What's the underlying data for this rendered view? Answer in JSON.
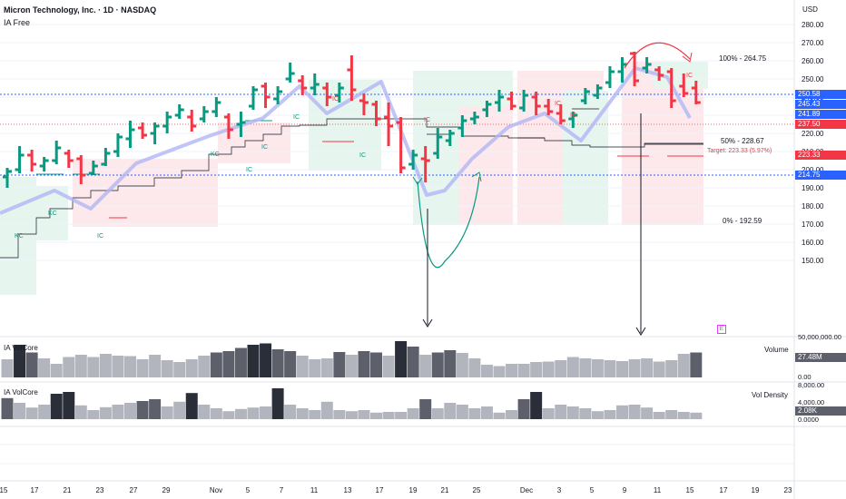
{
  "header": {
    "title": "Micron Technology, Inc. · 1D · NASDAQ",
    "subtitle": "IA Free",
    "currency": "USD"
  },
  "panes": {
    "volume_title": "IA VolCore",
    "volume_label": "Volume",
    "volume_value": "27.48M",
    "density_title": "IA VolCore",
    "density_label": "Vol Density",
    "density_value": "2.08K",
    "e_badge": "E"
  },
  "price_badges": [
    {
      "value": "250.58",
      "color": "#2962ff"
    },
    {
      "value": "245.43",
      "color": "#2962ff"
    },
    {
      "value": "241.89",
      "color": "#2962ff"
    },
    {
      "value": "237.50",
      "color": "#f23645"
    },
    {
      "value": "223.33",
      "color": "#f23645"
    },
    {
      "value": "214.75",
      "color": "#2962ff"
    }
  ],
  "fib_labels": {
    "top": "100% - 264.75",
    "mid": "50% - 228.67",
    "bottom": "0% - 192.59",
    "target": "Target: 223.33 (5.97%)"
  },
  "marks": [
    "KC",
    "KC",
    "IC",
    "KC",
    "IC",
    "IC",
    "IC",
    "IC",
    "IC",
    "IC",
    "IC",
    "IC",
    "IC"
  ],
  "colors": {
    "up": "#089981",
    "down": "#f23645",
    "zigzag": "#b2b5f5",
    "green_zone": "#e6f6ef",
    "red_zone": "#fde9ec",
    "volume_bar": "#b2b5be",
    "volume_dark": "#5d606b",
    "volume_darkest": "#2a2e39"
  },
  "chart_data": {
    "type": "ohlc",
    "title": "Micron Technology, Inc. · 1D · NASDAQ",
    "ylim": [
      145,
      285
    ],
    "y_ticks": [
      "280.00",
      "270.00",
      "260.00",
      "250.00",
      "240.00",
      "230.00",
      "220.00",
      "210.00",
      "200.00",
      "190.00",
      "180.00",
      "170.00",
      "160.00",
      "150.00"
    ],
    "x_ticks": [
      "15",
      "17",
      "21",
      "23",
      "27",
      "29",
      "Nov",
      "5",
      "7",
      "11",
      "13",
      "17",
      "19",
      "21",
      "25",
      "Dec",
      "3",
      "5",
      "9",
      "11",
      "15",
      "17",
      "19",
      "23"
    ],
    "bars": [
      {
        "o": 196,
        "h": 201,
        "l": 190,
        "c": 199
      },
      {
        "o": 200,
        "h": 213,
        "l": 198,
        "c": 208
      },
      {
        "o": 208,
        "h": 211,
        "l": 199,
        "c": 203
      },
      {
        "o": 202,
        "h": 207,
        "l": 199,
        "c": 205
      },
      {
        "o": 205,
        "h": 216,
        "l": 203,
        "c": 212
      },
      {
        "o": 209,
        "h": 211,
        "l": 201,
        "c": 205
      },
      {
        "o": 206,
        "h": 208,
        "l": 192,
        "c": 197
      },
      {
        "o": 198,
        "h": 205,
        "l": 197,
        "c": 202
      },
      {
        "o": 203,
        "h": 212,
        "l": 202,
        "c": 209
      },
      {
        "o": 210,
        "h": 220,
        "l": 207,
        "c": 218
      },
      {
        "o": 217,
        "h": 227,
        "l": 212,
        "c": 222
      },
      {
        "o": 223,
        "h": 226,
        "l": 217,
        "c": 219
      },
      {
        "o": 220,
        "h": 226,
        "l": 214,
        "c": 224
      },
      {
        "o": 224,
        "h": 232,
        "l": 220,
        "c": 229
      },
      {
        "o": 230,
        "h": 236,
        "l": 228,
        "c": 233
      },
      {
        "o": 229,
        "h": 233,
        "l": 221,
        "c": 224
      },
      {
        "o": 228,
        "h": 235,
        "l": 226,
        "c": 232
      },
      {
        "o": 232,
        "h": 240,
        "l": 229,
        "c": 237
      },
      {
        "o": 229,
        "h": 231,
        "l": 217,
        "c": 222
      },
      {
        "o": 225,
        "h": 232,
        "l": 218,
        "c": 226
      },
      {
        "o": 235,
        "h": 246,
        "l": 233,
        "c": 244
      },
      {
        "o": 246,
        "h": 248,
        "l": 234,
        "c": 240
      },
      {
        "o": 239,
        "h": 246,
        "l": 236,
        "c": 243
      },
      {
        "o": 250,
        "h": 259,
        "l": 248,
        "c": 253
      },
      {
        "o": 249,
        "h": 252,
        "l": 241,
        "c": 245
      },
      {
        "o": 245,
        "h": 253,
        "l": 241,
        "c": 247
      },
      {
        "o": 245,
        "h": 248,
        "l": 235,
        "c": 240
      },
      {
        "o": 241,
        "h": 248,
        "l": 237,
        "c": 245
      },
      {
        "o": 255,
        "h": 263,
        "l": 238,
        "c": 244
      },
      {
        "o": 238,
        "h": 242,
        "l": 230,
        "c": 237
      },
      {
        "o": 236,
        "h": 238,
        "l": 224,
        "c": 228
      },
      {
        "o": 229,
        "h": 237,
        "l": 213,
        "c": 224
      },
      {
        "o": 226,
        "h": 229,
        "l": 198,
        "c": 201
      },
      {
        "o": 203,
        "h": 211,
        "l": 200,
        "c": 208
      },
      {
        "o": 206,
        "h": 213,
        "l": 193,
        "c": 205
      },
      {
        "o": 209,
        "h": 223,
        "l": 206,
        "c": 218
      },
      {
        "o": 216,
        "h": 222,
        "l": 213,
        "c": 220
      },
      {
        "o": 223,
        "h": 230,
        "l": 218,
        "c": 227
      },
      {
        "o": 228,
        "h": 232,
        "l": 225,
        "c": 229
      },
      {
        "o": 233,
        "h": 238,
        "l": 229,
        "c": 236
      },
      {
        "o": 237,
        "h": 244,
        "l": 232,
        "c": 240
      },
      {
        "o": 239,
        "h": 243,
        "l": 233,
        "c": 235
      },
      {
        "o": 234,
        "h": 244,
        "l": 232,
        "c": 241
      },
      {
        "o": 240,
        "h": 243,
        "l": 230,
        "c": 235
      },
      {
        "o": 235,
        "h": 239,
        "l": 230,
        "c": 232
      },
      {
        "o": 231,
        "h": 236,
        "l": 225,
        "c": 227
      },
      {
        "o": 228,
        "h": 232,
        "l": 223,
        "c": 230
      },
      {
        "o": 238,
        "h": 245,
        "l": 236,
        "c": 243
      },
      {
        "o": 241,
        "h": 247,
        "l": 239,
        "c": 245
      },
      {
        "o": 248,
        "h": 257,
        "l": 245,
        "c": 254
      },
      {
        "o": 254,
        "h": 262,
        "l": 248,
        "c": 258
      },
      {
        "o": 264,
        "h": 265,
        "l": 246,
        "c": 249
      },
      {
        "o": 256,
        "h": 262,
        "l": 253,
        "c": 258
      },
      {
        "o": 255,
        "h": 257,
        "l": 249,
        "c": 252
      },
      {
        "o": 254,
        "h": 256,
        "l": 234,
        "c": 238
      },
      {
        "o": 246,
        "h": 253,
        "l": 240,
        "c": 242
      },
      {
        "o": 245,
        "h": 249,
        "l": 236,
        "c": 237
      }
    ],
    "volume": [
      40,
      72,
      55,
      42,
      30,
      45,
      50,
      45,
      52,
      48,
      47,
      40,
      50,
      38,
      34,
      40,
      48,
      55,
      58,
      65,
      72,
      75,
      62,
      58,
      48,
      40,
      42,
      56,
      50,
      58,
      55,
      48,
      80,
      68,
      50,
      55,
      60,
      54,
      42,
      28,
      25,
      30,
      30,
      34,
      35,
      38,
      45,
      42,
      40,
      38,
      36,
      40,
      42,
      35,
      38,
      52,
      55
    ],
    "volume_ylim": [
      0,
      50000000
    ],
    "volume_ticks": [
      "50,000,000.00",
      "0.00"
    ],
    "density": [
      58,
      45,
      32,
      40,
      70,
      75,
      38,
      25,
      33,
      40,
      45,
      50,
      55,
      35,
      48,
      72,
      40,
      30,
      22,
      28,
      32,
      35,
      85,
      40,
      30,
      25,
      48,
      25,
      22,
      25,
      18,
      20,
      20,
      30,
      55,
      30,
      45,
      40,
      30,
      35,
      18,
      25,
      55,
      75,
      30,
      40,
      35,
      30,
      22,
      25,
      38,
      40,
      32,
      20,
      25,
      20,
      18
    ],
    "density_ylim": [
      0,
      8000
    ],
    "density_ticks": [
      "8,000.00",
      "4,000.00",
      "0.0000"
    ]
  }
}
